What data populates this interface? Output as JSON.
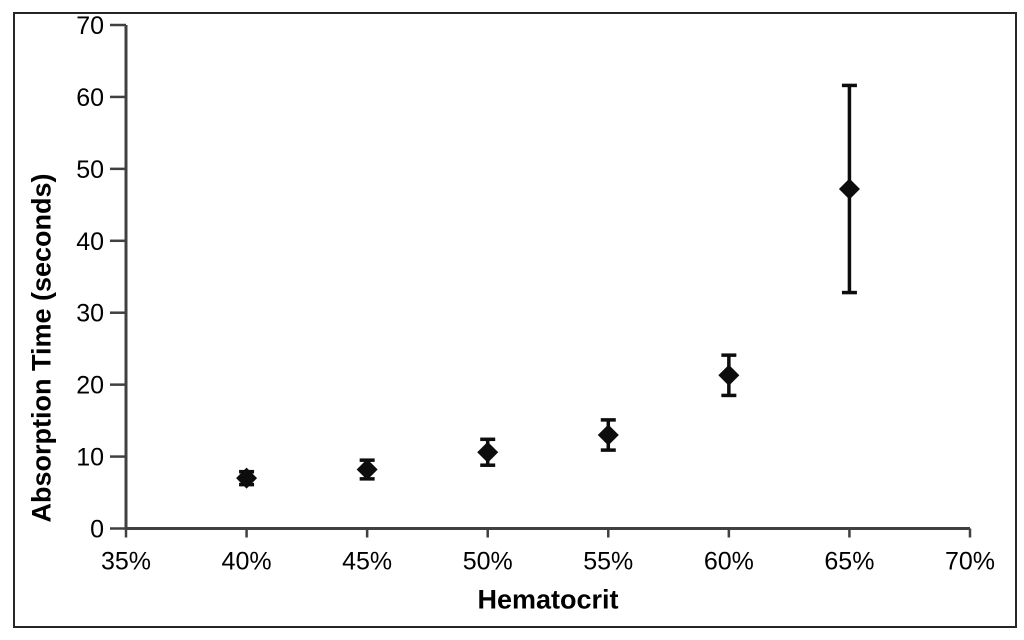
{
  "chart_data": {
    "type": "scatter",
    "title": "",
    "xlabel": "Hematocrit",
    "ylabel": "Absorption Time (seconds)",
    "xlim": [
      35,
      70
    ],
    "ylim": [
      0,
      70
    ],
    "grid": false,
    "legend_position": "none",
    "x_ticks": [
      35,
      40,
      45,
      50,
      55,
      60,
      65,
      70
    ],
    "x_tick_labels": [
      "35%",
      "40%",
      "45%",
      "50%",
      "55%",
      "60%",
      "65%",
      "70%"
    ],
    "y_ticks": [
      0,
      10,
      20,
      30,
      40,
      50,
      60,
      70
    ],
    "y_tick_labels": [
      "0",
      "10",
      "20",
      "30",
      "40",
      "50",
      "60",
      "70"
    ],
    "series": [
      {
        "name": "Absorption time",
        "marker": "diamond",
        "x": [
          40,
          45,
          50,
          55,
          60,
          65
        ],
        "x_labels": [
          "40%",
          "45%",
          "50%",
          "55%",
          "60%",
          "65%"
        ],
        "y": [
          7.0,
          8.2,
          10.6,
          13.0,
          21.3,
          47.2
        ],
        "y_err": [
          0.9,
          1.3,
          1.8,
          2.1,
          2.8,
          14.4
        ]
      }
    ],
    "colors": {
      "marker": "#0d0d0d",
      "error_bar": "#0d0d0d",
      "axis_line": "#404040",
      "tick_label": "#000000",
      "axis_title": "#000000",
      "frame_border": "#262626",
      "background": "#ffffff"
    }
  }
}
